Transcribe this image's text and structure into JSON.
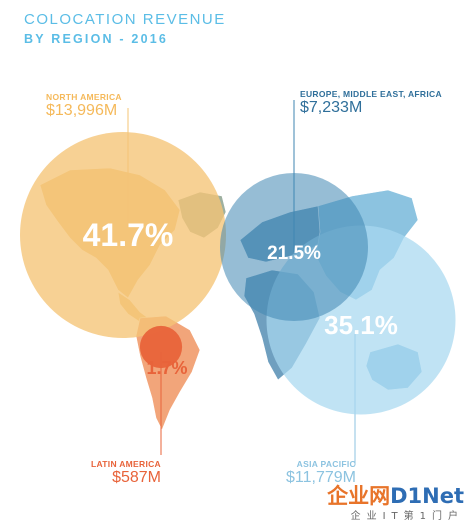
{
  "header": {
    "title": "COLOCATION REVENUE",
    "subtitle": "BY REGION - 2016"
  },
  "chart_data": {
    "type": "bubble-map",
    "title": "COLOCATION REVENUE BY REGION - 2016",
    "regions": [
      {
        "key": "na",
        "name": "NORTH AMERICA",
        "value": "$13,996M",
        "value_m": 13996,
        "share": "41.7%",
        "share_pct": 41.7,
        "color": "#f5c476"
      },
      {
        "key": "emea",
        "name": "EUROPE, MIDDLE EAST, AFRICA",
        "value": "$7,233M",
        "value_m": 7233,
        "share": "21.5%",
        "share_pct": 21.5,
        "color": "#3f86b2"
      },
      {
        "key": "apac",
        "name": "ASIA PACIFIC",
        "value": "$11,779M",
        "value_m": 11779,
        "share": "35.1%",
        "share_pct": 35.1,
        "color": "#a8d8f0"
      },
      {
        "key": "latam",
        "name": "LATIN AMERICA",
        "value": "$587M",
        "value_m": 587,
        "share": "1.7%",
        "share_pct": 1.7,
        "color": "#e8633a"
      }
    ]
  },
  "watermark": {
    "brand_a": "企业网",
    "brand_b": "D1Net",
    "tagline": "企业IT第1门户"
  },
  "colors": {
    "title": "#5bbde6",
    "continent_na": "#f0c884",
    "continent_sa": "#f2a57a",
    "continent_eu": "#6f9fbf",
    "continent_as": "#8cc3e0",
    "greenland": "#9eb0a0"
  }
}
